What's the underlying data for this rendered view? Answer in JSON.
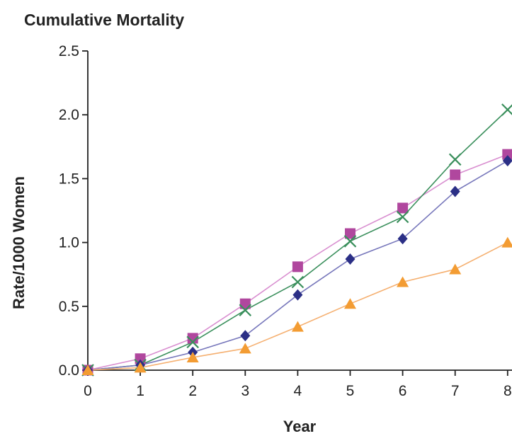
{
  "chart_data": {
    "type": "line",
    "title": "Cumulative Mortality",
    "xlabel": "Year",
    "ylabel": "Rate/1000 Women",
    "x": [
      0,
      1,
      2,
      3,
      4,
      5,
      6,
      7,
      8
    ],
    "xlim": [
      0,
      8
    ],
    "ylim": [
      0,
      2.5
    ],
    "x_ticks": [
      "0",
      "1",
      "2",
      "3",
      "4",
      "5",
      "6",
      "7",
      "8"
    ],
    "y_ticks": [
      "0.0",
      "0.5",
      "1.0",
      "1.5",
      "2.0",
      "2.5"
    ],
    "grid": false,
    "legend": "none",
    "series": [
      {
        "marker": "square",
        "color": "#b0479e",
        "line_color": "#d98fd0",
        "values": [
          0.0,
          0.09,
          0.25,
          0.52,
          0.81,
          1.07,
          1.27,
          1.53,
          1.69
        ]
      },
      {
        "marker": "x",
        "color": "#3a8f5c",
        "line_color": "#3a8f5c",
        "values": [
          0.0,
          0.04,
          0.22,
          0.47,
          0.69,
          1.01,
          1.2,
          1.65,
          2.04
        ]
      },
      {
        "marker": "diamond",
        "color": "#2b2f86",
        "line_color": "#7777bb",
        "values": [
          0.0,
          0.04,
          0.14,
          0.27,
          0.59,
          0.87,
          1.03,
          1.4,
          1.64
        ]
      },
      {
        "marker": "triangle",
        "color": "#f39c33",
        "line_color": "#f5b071",
        "values": [
          0.0,
          0.02,
          0.1,
          0.17,
          0.34,
          0.52,
          0.69,
          0.79,
          1.0
        ]
      }
    ]
  }
}
